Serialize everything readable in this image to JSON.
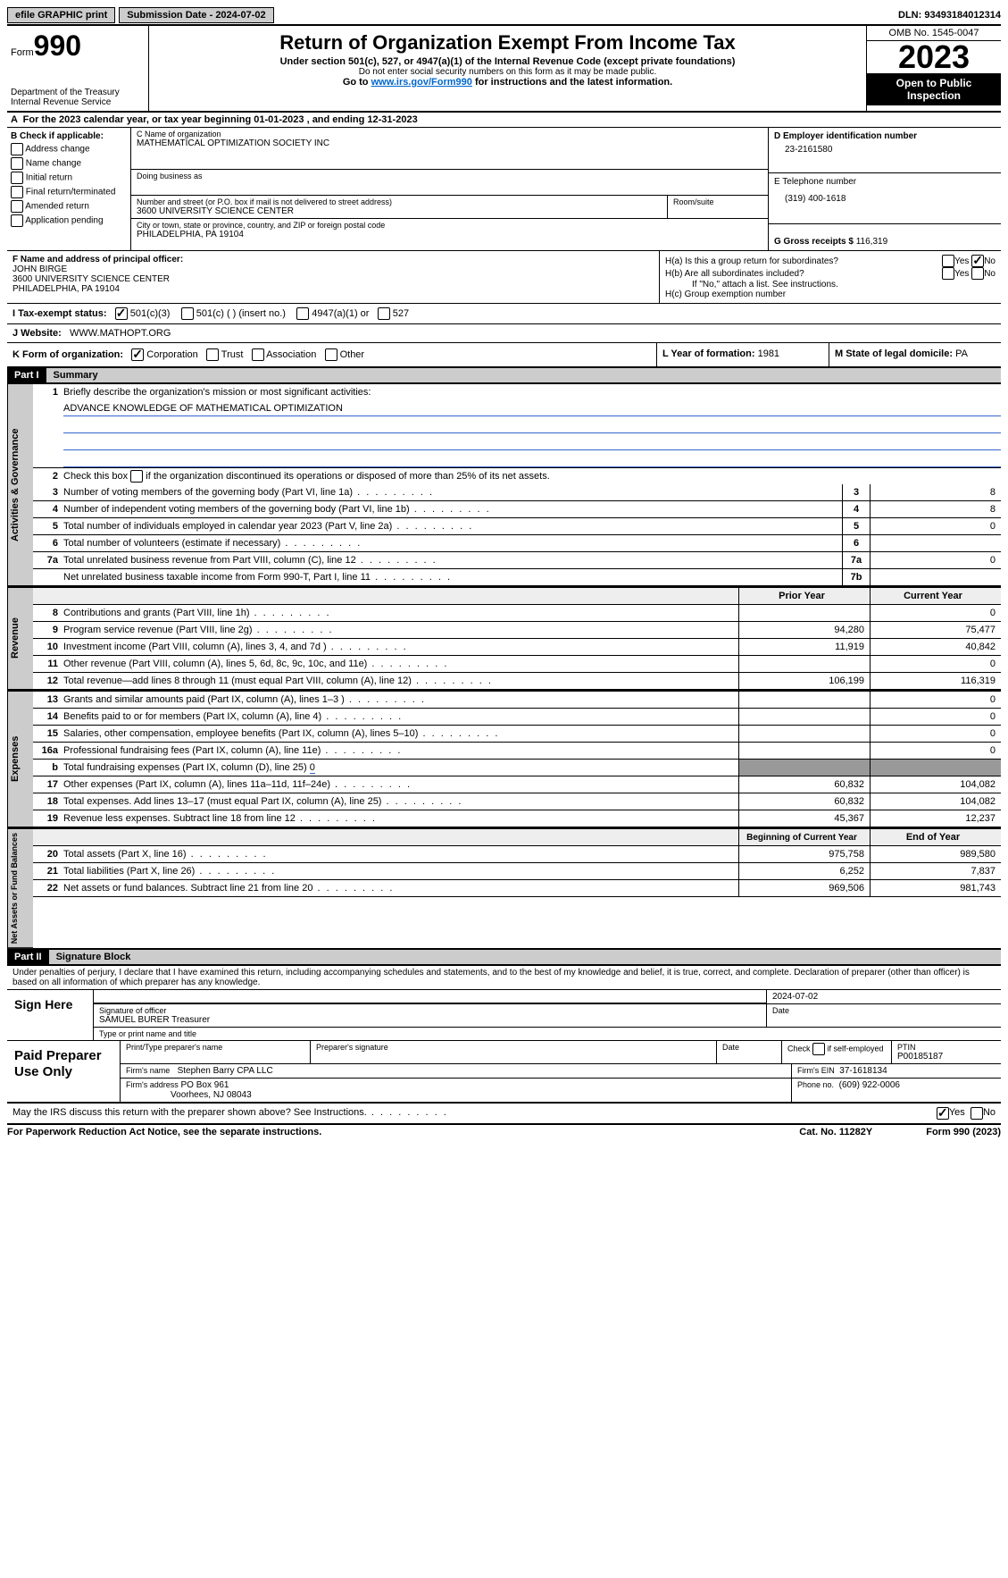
{
  "topbar": {
    "efile": "efile GRAPHIC print",
    "submission": "Submission Date - 2024-07-02",
    "dln": "DLN: 93493184012314"
  },
  "header": {
    "form_label": "Form",
    "form_num": "990",
    "dept": "Department of the Treasury",
    "irs": "Internal Revenue Service",
    "title": "Return of Organization Exempt From Income Tax",
    "sub1": "Under section 501(c), 527, or 4947(a)(1) of the Internal Revenue Code (except private foundations)",
    "sub2": "Do not enter social security numbers on this form as it may be made public.",
    "sub3a": "Go to ",
    "sub3_link": "www.irs.gov/Form990",
    "sub3b": " for instructions and the latest information.",
    "omb": "OMB No. 1545-0047",
    "year": "2023",
    "open": "Open to Public Inspection"
  },
  "lineA": "For the 2023 calendar year, or tax year beginning 01-01-2023   , and ending 12-31-2023",
  "boxB": {
    "title": "B Check if applicable:",
    "items": [
      "Address change",
      "Name change",
      "Initial return",
      "Final return/terminated",
      "Amended return",
      "Application pending"
    ]
  },
  "boxC": {
    "name_label": "C Name of organization",
    "name": "MATHEMATICAL OPTIMIZATION SOCIETY INC",
    "dba_label": "Doing business as",
    "addr_label": "Number and street (or P.O. box if mail is not delivered to street address)",
    "addr": "3600 UNIVERSITY SCIENCE CENTER",
    "room_label": "Room/suite",
    "city_label": "City or town, state or province, country, and ZIP or foreign postal code",
    "city": "PHILADELPHIA, PA  19104"
  },
  "boxD": {
    "label": "D Employer identification number",
    "val": "23-2161580"
  },
  "boxE": {
    "label": "E Telephone number",
    "val": "(319) 400-1618"
  },
  "boxG": {
    "label": "G Gross receipts $",
    "val": "116,319"
  },
  "boxF": {
    "label": "F  Name and address of principal officer:",
    "name": "JOHN BIRGE",
    "addr1": "3600 UNIVERSITY SCIENCE CENTER",
    "addr2": "PHILADELPHIA, PA 19104"
  },
  "boxH": {
    "a": "H(a)  Is this a group return for subordinates?",
    "b": "H(b)  Are all subordinates included?",
    "b2": "If \"No,\" attach a list. See instructions.",
    "c": "H(c)  Group exemption number",
    "yes": "Yes",
    "no": "No"
  },
  "rowI": {
    "label": "I   Tax-exempt status:",
    "opts": [
      "501(c)(3)",
      "501(c) (  ) (insert no.)",
      "4947(a)(1) or",
      "527"
    ]
  },
  "rowJ": {
    "label": "J   Website:",
    "val": "WWW.MATHOPT.ORG"
  },
  "rowK": {
    "label": "K Form of organization:",
    "opts": [
      "Corporation",
      "Trust",
      "Association",
      "Other"
    ]
  },
  "rowL": {
    "label": "L Year of formation:",
    "val": "1981"
  },
  "rowM": {
    "label": "M State of legal domicile:",
    "val": "PA"
  },
  "part1": {
    "header": "Part I",
    "title": "Summary"
  },
  "sections": {
    "gov": "Activities & Governance",
    "rev": "Revenue",
    "exp": "Expenses",
    "net": "Net Assets or Fund Balances"
  },
  "mission_label": "Briefly describe the organization's mission or most significant activities:",
  "mission": "ADVANCE KNOWLEDGE OF MATHEMATICAL OPTIMIZATION",
  "line2": "Check this box       if the organization discontinued its operations or disposed of more than 25% of its net assets.",
  "gov_lines": [
    {
      "n": "3",
      "d": "Number of voting members of the governing body (Part VI, line 1a)",
      "box": "3",
      "v": "8"
    },
    {
      "n": "4",
      "d": "Number of independent voting members of the governing body (Part VI, line 1b)",
      "box": "4",
      "v": "8"
    },
    {
      "n": "5",
      "d": "Total number of individuals employed in calendar year 2023 (Part V, line 2a)",
      "box": "5",
      "v": "0"
    },
    {
      "n": "6",
      "d": "Total number of volunteers (estimate if necessary)",
      "box": "6",
      "v": ""
    },
    {
      "n": "7a",
      "d": "Total unrelated business revenue from Part VIII, column (C), line 12",
      "box": "7a",
      "v": "0"
    },
    {
      "n": "",
      "d": "Net unrelated business taxable income from Form 990-T, Part I, line 11",
      "box": "7b",
      "v": ""
    }
  ],
  "col_headers": {
    "prior": "Prior Year",
    "current": "Current Year",
    "begin": "Beginning of Current Year",
    "end": "End of Year"
  },
  "rev_lines": [
    {
      "n": "8",
      "d": "Contributions and grants (Part VIII, line 1h)",
      "p": "",
      "c": "0"
    },
    {
      "n": "9",
      "d": "Program service revenue (Part VIII, line 2g)",
      "p": "94,280",
      "c": "75,477"
    },
    {
      "n": "10",
      "d": "Investment income (Part VIII, column (A), lines 3, 4, and 7d )",
      "p": "11,919",
      "c": "40,842"
    },
    {
      "n": "11",
      "d": "Other revenue (Part VIII, column (A), lines 5, 6d, 8c, 9c, 10c, and 11e)",
      "p": "",
      "c": "0"
    },
    {
      "n": "12",
      "d": "Total revenue—add lines 8 through 11 (must equal Part VIII, column (A), line 12)",
      "p": "106,199",
      "c": "116,319"
    }
  ],
  "exp_lines": [
    {
      "n": "13",
      "d": "Grants and similar amounts paid (Part IX, column (A), lines 1–3 )",
      "p": "",
      "c": "0"
    },
    {
      "n": "14",
      "d": "Benefits paid to or for members (Part IX, column (A), line 4)",
      "p": "",
      "c": "0"
    },
    {
      "n": "15",
      "d": "Salaries, other compensation, employee benefits (Part IX, column (A), lines 5–10)",
      "p": "",
      "c": "0"
    },
    {
      "n": "16a",
      "d": "Professional fundraising fees (Part IX, column (A), line 11e)",
      "p": "",
      "c": "0"
    }
  ],
  "line16b": {
    "n": "b",
    "d": "Total fundraising expenses (Part IX, column (D), line 25)",
    "u": "0"
  },
  "exp_lines2": [
    {
      "n": "17",
      "d": "Other expenses (Part IX, column (A), lines 11a–11d, 11f–24e)",
      "p": "60,832",
      "c": "104,082"
    },
    {
      "n": "18",
      "d": "Total expenses. Add lines 13–17 (must equal Part IX, column (A), line 25)",
      "p": "60,832",
      "c": "104,082"
    },
    {
      "n": "19",
      "d": "Revenue less expenses. Subtract line 18 from line 12",
      "p": "45,367",
      "c": "12,237"
    }
  ],
  "net_lines": [
    {
      "n": "20",
      "d": "Total assets (Part X, line 16)",
      "p": "975,758",
      "c": "989,580"
    },
    {
      "n": "21",
      "d": "Total liabilities (Part X, line 26)",
      "p": "6,252",
      "c": "7,837"
    },
    {
      "n": "22",
      "d": "Net assets or fund balances. Subtract line 21 from line 20",
      "p": "969,506",
      "c": "981,743"
    }
  ],
  "part2": {
    "header": "Part II",
    "title": "Signature Block"
  },
  "sig_text": "Under penalties of perjury, I declare that I have examined this return, including accompanying schedules and statements, and to the best of my knowledge and belief, it is true, correct, and complete. Declaration of preparer (other than officer) is based on all information of which preparer has any knowledge.",
  "sign": {
    "here": "Sign Here",
    "sig_label": "Signature of officer",
    "date_label": "Date",
    "date": "2024-07-02",
    "name": "SAMUEL BURER  Treasurer",
    "name_label": "Type or print name and title"
  },
  "prep": {
    "title": "Paid Preparer Use Only",
    "print_label": "Print/Type preparer's name",
    "sig_label": "Preparer's signature",
    "date_label": "Date",
    "check_label": "Check         if self-employed",
    "ptin_label": "PTIN",
    "ptin": "P00185187",
    "firm_name_label": "Firm's name",
    "firm_name": "Stephen Barry CPA LLC",
    "firm_ein_label": "Firm's EIN",
    "firm_ein": "37-1618134",
    "firm_addr_label": "Firm's address",
    "firm_addr1": "PO Box 961",
    "firm_addr2": "Voorhees, NJ  08043",
    "phone_label": "Phone no.",
    "phone": "(609) 922-0006"
  },
  "may_irs": "May the IRS discuss this return with the preparer shown above? See Instructions.",
  "footer": {
    "left": "For Paperwork Reduction Act Notice, see the separate instructions.",
    "mid": "Cat. No. 11282Y",
    "right_a": "Form ",
    "right_b": "990",
    "right_c": " (2023)"
  }
}
